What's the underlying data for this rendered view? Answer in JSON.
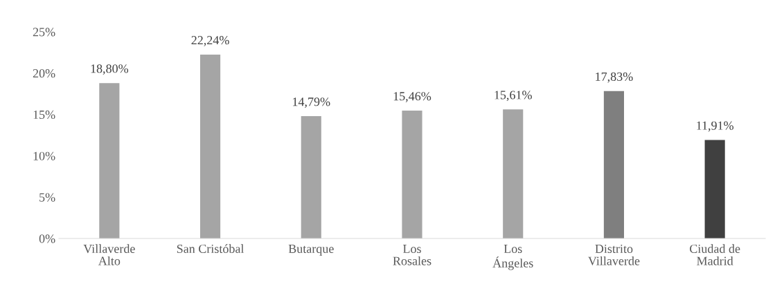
{
  "chart_data": {
    "type": "bar",
    "categories": [
      "Villaverde\nAlto",
      "San Cristóbal",
      "Butarque",
      "Los\nRosales",
      "Los\nÁngeles",
      "Distrito\nVillaverde",
      "Ciudad de\nMadrid"
    ],
    "values": [
      18.8,
      22.24,
      14.79,
      15.46,
      15.61,
      17.83,
      11.91
    ],
    "colors": [
      "#a5a5a5",
      "#a5a5a5",
      "#a5a5a5",
      "#a5a5a5",
      "#a5a5a5",
      "#7f7f7f",
      "#404040"
    ],
    "value_labels": [
      "18,80%",
      "22,24%",
      "14,79%",
      "15,46%",
      "15,61%",
      "17,83%",
      "11,91%"
    ],
    "ylim": [
      0,
      25
    ],
    "yticks": [
      {
        "value": 0,
        "label": "0%"
      },
      {
        "value": 5,
        "label": "5%"
      },
      {
        "value": 10,
        "label": "10%"
      },
      {
        "value": 15,
        "label": "15%"
      },
      {
        "value": 20,
        "label": "20%"
      },
      {
        "value": 25,
        "label": "25%"
      }
    ],
    "grid": false
  }
}
